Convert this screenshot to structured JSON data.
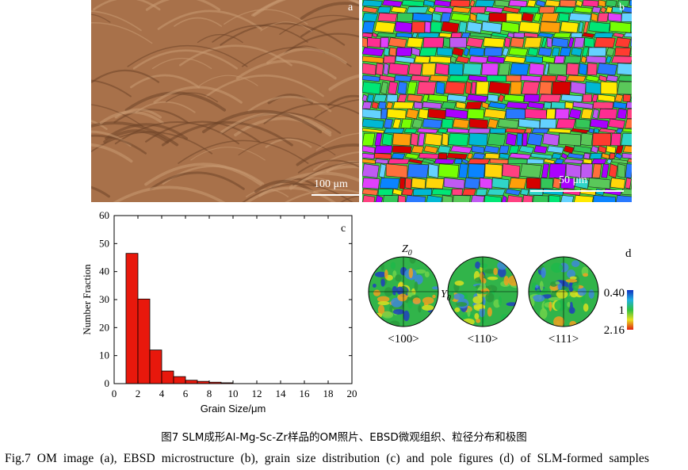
{
  "panels": {
    "a": {
      "letter": "a",
      "scale_label": "100 μm"
    },
    "b": {
      "letter": "b",
      "scale_label": "50 μm"
    },
    "c": {
      "letter": "c"
    },
    "d": {
      "letter": "d",
      "directions": [
        "<100>",
        "<110>",
        "<111>"
      ],
      "axis_top": "Z",
      "axis_top_sub": "0",
      "axis_side": "Y",
      "axis_side_sub": "0",
      "colorbar_ticks": [
        "0.40",
        "1",
        "2.16"
      ]
    }
  },
  "chart_data": {
    "type": "bar",
    "xlabel": "Grain Size/μm",
    "ylabel": "Number Fraction",
    "xlim": [
      0,
      20
    ],
    "ylim": [
      0,
      60
    ],
    "xticks": [
      "0",
      "2",
      "4",
      "6",
      "8",
      "10",
      "12",
      "14",
      "16",
      "18",
      "20"
    ],
    "yticks": [
      "0",
      "10",
      "20",
      "30",
      "40",
      "50",
      "60"
    ],
    "bars": [
      {
        "x_start": 1,
        "x_end": 2,
        "value": 46.5
      },
      {
        "x_start": 2,
        "x_end": 3,
        "value": 30.2
      },
      {
        "x_start": 3,
        "x_end": 4,
        "value": 12.0
      },
      {
        "x_start": 4,
        "x_end": 5,
        "value": 4.5
      },
      {
        "x_start": 5,
        "x_end": 6,
        "value": 2.5
      },
      {
        "x_start": 6,
        "x_end": 7,
        "value": 1.2
      },
      {
        "x_start": 7,
        "x_end": 8,
        "value": 0.8
      },
      {
        "x_start": 8,
        "x_end": 9,
        "value": 0.5
      },
      {
        "x_start": 9,
        "x_end": 10,
        "value": 0.3
      }
    ],
    "bar_color": "#e8180c"
  },
  "captions": {
    "cn": "图7    SLM成形Al-Mg-Sc-Zr样品的OM照片、EBSD微观组织、粒径分布和极图",
    "en": "Fig.7    OM image (a), EBSD microstructure (b), grain size distribution (c) and pole figures (d) of SLM-formed samples"
  },
  "colors": {
    "om_base": "#a8714a",
    "om_light": "#c99a72",
    "om_dark": "#6e4428",
    "bar_edge": "#000000"
  }
}
